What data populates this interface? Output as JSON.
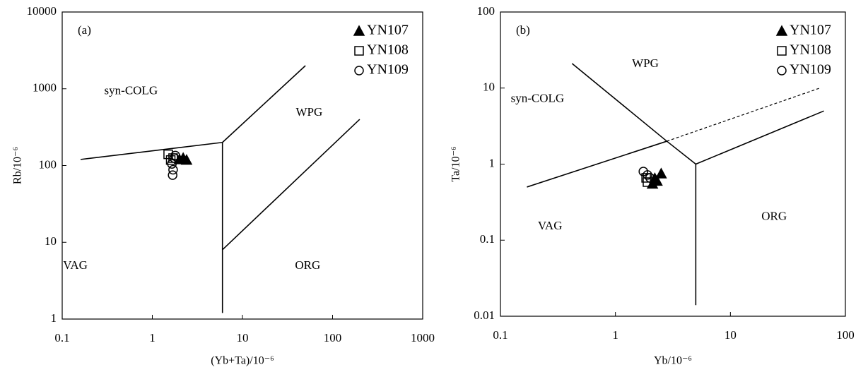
{
  "chart_data": [
    {
      "type": "scatter",
      "panel": "(a)",
      "x_label": "(Yb+Ta)/10⁻⁶",
      "y_label": "Rb/10⁻⁶",
      "xscale": "log",
      "yscale": "log",
      "xlim": [
        0.1,
        1000
      ],
      "ylim": [
        1,
        10000
      ],
      "xticks": [
        0.1,
        1,
        10,
        100,
        1000
      ],
      "yticks": [
        1,
        10,
        100,
        1000,
        10000
      ],
      "legend": "upper right",
      "series": [
        {
          "name": "YN107",
          "marker": "triangle",
          "color": "#000000",
          "filled": true,
          "x": [
            2.0,
            2.2,
            2.4
          ],
          "values": [
            120,
            125,
            118
          ]
        },
        {
          "name": "YN108",
          "marker": "square",
          "color": "#000000",
          "filled": false,
          "x": [
            1.5,
            1.6,
            1.7
          ],
          "values": [
            140,
            118,
            125
          ]
        },
        {
          "name": "YN109",
          "marker": "circle",
          "color": "#000000",
          "filled": false,
          "x": [
            1.8,
            1.65,
            1.7,
            1.68,
            1.75
          ],
          "values": [
            135,
            105,
            88,
            75,
            125
          ]
        }
      ],
      "lines": [
        {
          "x": [
            0.16,
            6
          ],
          "y": [
            120,
            200
          ],
          "style": "solid"
        },
        {
          "x": [
            6,
            6
          ],
          "y": [
            200,
            1.2
          ],
          "style": "solid"
        },
        {
          "x": [
            6,
            50
          ],
          "y": [
            200,
            2000
          ],
          "style": "solid"
        },
        {
          "x": [
            6,
            200
          ],
          "y": [
            8,
            400
          ],
          "style": "solid"
        }
      ],
      "annotations": [
        {
          "text": "syn-COLG",
          "x": 0.58,
          "y": 920
        },
        {
          "text": "WPG",
          "x": 55,
          "y": 485
        },
        {
          "text": "VAG",
          "x": 0.14,
          "y": 4.9
        },
        {
          "text": "ORG",
          "x": 53,
          "y": 4.9
        }
      ]
    },
    {
      "type": "scatter",
      "panel": "(b)",
      "x_label": "Yb/10⁻⁶",
      "y_label": "Ta/10⁻⁶",
      "xscale": "log",
      "yscale": "log",
      "xlim": [
        0.1,
        100
      ],
      "ylim": [
        0.01,
        100
      ],
      "xticks": [
        0.1,
        1,
        10,
        100
      ],
      "yticks": [
        0.01,
        0.1,
        1,
        10,
        100
      ],
      "legend": "upper right",
      "series": [
        {
          "name": "YN107",
          "marker": "triangle",
          "color": "#000000",
          "filled": true,
          "x": [
            2.1,
            2.2,
            2.5,
            2.3
          ],
          "values": [
            0.55,
            0.65,
            0.75,
            0.6
          ]
        },
        {
          "name": "YN108",
          "marker": "square",
          "color": "#000000",
          "filled": false,
          "x": [
            1.85,
            1.9
          ],
          "values": [
            0.66,
            0.58
          ]
        },
        {
          "name": "YN109",
          "marker": "circle",
          "color": "#000000",
          "filled": false,
          "x": [
            1.75,
            1.9,
            2.0
          ],
          "values": [
            0.8,
            0.72,
            0.66
          ]
        }
      ],
      "lines": [
        {
          "x": [
            0.17,
            2.8
          ],
          "y": [
            0.5,
            2
          ],
          "style": "solid"
        },
        {
          "x": [
            0.42,
            2.8,
            5
          ],
          "y": [
            21,
            2,
            1
          ],
          "style": "solid"
        },
        {
          "x": [
            5,
            5
          ],
          "y": [
            1,
            0.014
          ],
          "style": "solid"
        },
        {
          "x": [
            5,
            65
          ],
          "y": [
            1,
            5
          ],
          "style": "solid"
        },
        {
          "x": [
            2.8,
            60
          ],
          "y": [
            2,
            10
          ],
          "style": "dashed"
        }
      ],
      "annotations": [
        {
          "text": "WPG",
          "x": 1.82,
          "y": 20.5
        },
        {
          "text": "syn-COLG",
          "x": 0.21,
          "y": 7.1
        },
        {
          "text": "VAG",
          "x": 0.27,
          "y": 0.15
        },
        {
          "text": "ORG",
          "x": 24,
          "y": 0.2
        }
      ]
    }
  ]
}
